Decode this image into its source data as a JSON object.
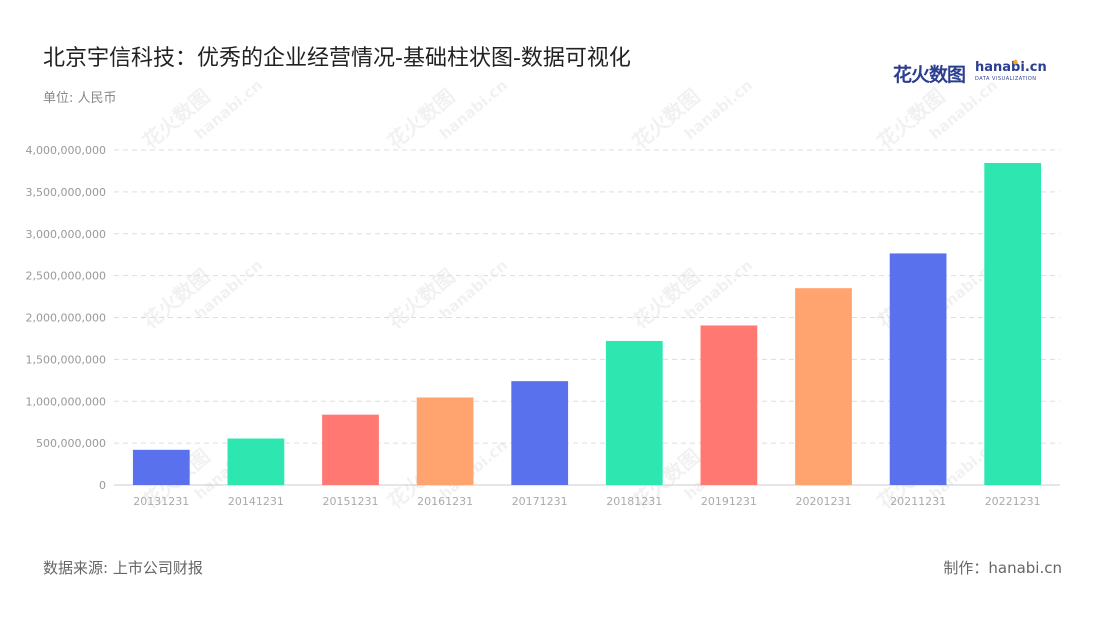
{
  "header": {
    "title": "北京宇信科技：优秀的企业经营情况-基础柱状图-数据可视化",
    "unit": "单位: 人民币"
  },
  "logo": {
    "cn": "花火数图",
    "en": "hanabi.cn",
    "sub": "DATA VISUALIZATION"
  },
  "footer": {
    "source": "数据来源: 上市公司财报",
    "credit": "制作：hanabi.cn"
  },
  "colors": {
    "palette": [
      "#5a71ee",
      "#2de6b0",
      "#ff7872",
      "#ffa36f"
    ],
    "grid": "#dddddd",
    "axis": "#cccccc"
  },
  "chart_data": {
    "type": "bar",
    "categories": [
      "20131231",
      "20141231",
      "20151231",
      "20161231",
      "20171231",
      "20181231",
      "20191231",
      "20201231",
      "20211231",
      "20221231"
    ],
    "values": [
      420000000,
      555000000,
      840000000,
      1045000000,
      1240000000,
      1720000000,
      1905000000,
      2350000000,
      2765000000,
      3845000000
    ],
    "ylim": [
      0,
      4000000000
    ],
    "yticks": [
      0,
      500000000,
      1000000000,
      1500000000,
      2000000000,
      2500000000,
      3000000000,
      3500000000,
      4000000000
    ],
    "ytick_labels": [
      "0",
      "500,000,000",
      "1,000,000,000",
      "1,500,000,000",
      "2,000,000,000",
      "2,500,000,000",
      "3,000,000,000",
      "3,500,000,000",
      "4,000,000,000"
    ],
    "grid": true,
    "legend": "none"
  }
}
